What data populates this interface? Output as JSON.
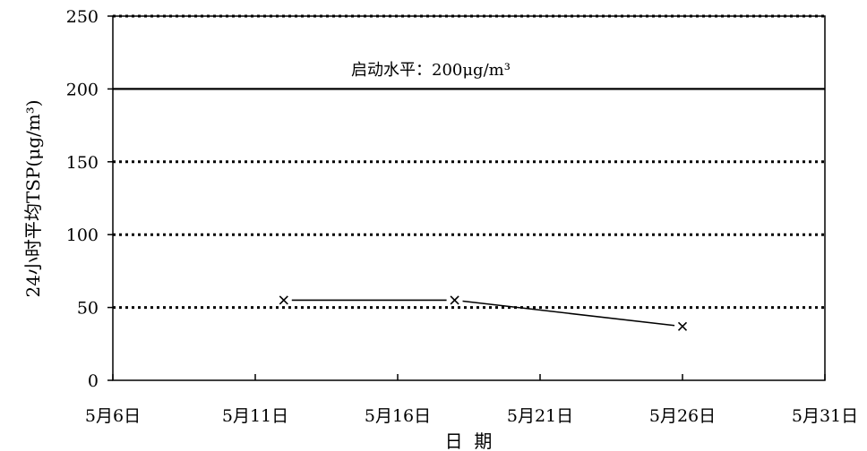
{
  "chart_data": {
    "type": "line",
    "xlabel": "日  期",
    "ylabel": "24小时平均TSP(μg/m³)",
    "x_ticks": [
      "5月6日",
      "5月11日",
      "5月16日",
      "5月21日",
      "5月26日",
      "5月31日"
    ],
    "xlim": [
      "5月6日",
      "5月31日"
    ],
    "ylim": [
      0,
      250
    ],
    "y_ticks": [
      0,
      50,
      100,
      150,
      200,
      250
    ],
    "series": [
      {
        "x": [
          "5月12日",
          "5月18日",
          "5月26日"
        ],
        "y": [
          55,
          55,
          37
        ],
        "marker": "x",
        "color": "#000000"
      }
    ],
    "reference_line": {
      "value": 200,
      "label": "启动水平：200μg/m³",
      "style": "solid"
    },
    "grid": {
      "horizontal": true,
      "style": "dotted",
      "vertical": false
    }
  }
}
